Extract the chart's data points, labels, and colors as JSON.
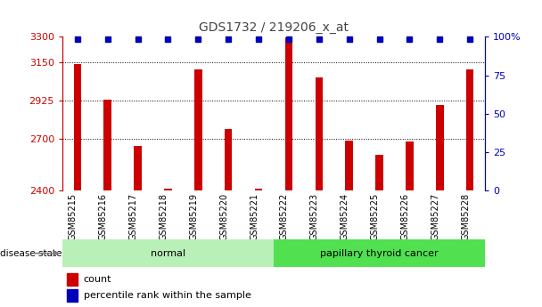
{
  "title": "GDS1732 / 219206_x_at",
  "categories": [
    "GSM85215",
    "GSM85216",
    "GSM85217",
    "GSM85218",
    "GSM85219",
    "GSM85220",
    "GSM85221",
    "GSM85222",
    "GSM85223",
    "GSM85224",
    "GSM85225",
    "GSM85226",
    "GSM85227",
    "GSM85228"
  ],
  "counts": [
    3140,
    2930,
    2660,
    2410,
    3110,
    2760,
    2410,
    3295,
    3060,
    2690,
    2610,
    2685,
    2900,
    3110
  ],
  "ylim_left": [
    2400,
    3300
  ],
  "ylim_right": [
    0,
    100
  ],
  "yticks_left": [
    2400,
    2700,
    2925,
    3150,
    3300
  ],
  "ytick_labels_left": [
    "2400",
    "2700",
    "2925",
    "3150",
    "3300"
  ],
  "yticks_right": [
    0,
    25,
    50,
    75,
    100
  ],
  "ytick_labels_right": [
    "0",
    "25",
    "50",
    "75",
    "100%"
  ],
  "groups": [
    {
      "label": "normal",
      "start": 0,
      "end": 7,
      "color": "#b8f0b8"
    },
    {
      "label": "papillary thyroid cancer",
      "start": 7,
      "end": 14,
      "color": "#50e050"
    }
  ],
  "bar_color_red": "#cc0000",
  "bar_color_blue": "#0000bb",
  "background_color": "#ffffff",
  "tick_bg_color": "#c8c8c8",
  "legend_count_label": "count",
  "legend_pct_label": "percentile rank within the sample",
  "disease_state_label": "disease state",
  "grid_color": "#000000",
  "title_color": "#444444",
  "left_axis_color": "#cc0000",
  "right_axis_color": "#0000bb"
}
